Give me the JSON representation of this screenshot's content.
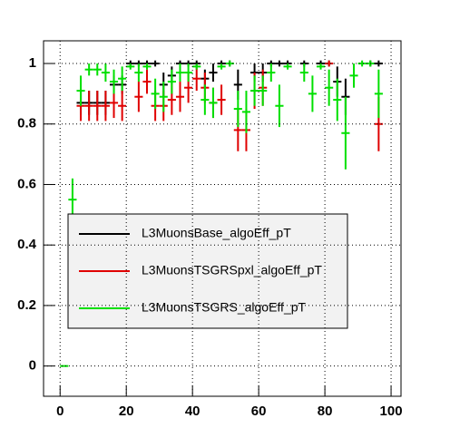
{
  "chart_data": {
    "type": "errorbar",
    "x": [
      1.25,
      3.75,
      6.25,
      8.75,
      11.25,
      13.75,
      16.25,
      18.75,
      21.25,
      23.75,
      26.25,
      28.75,
      31.25,
      33.75,
      36.25,
      38.75,
      41.25,
      43.75,
      46.25,
      48.75,
      51.25,
      53.75,
      56.25,
      58.75,
      61.25,
      63.75,
      66.25,
      68.75,
      71.25,
      73.75,
      76.25,
      78.75,
      81.25,
      83.75,
      86.25,
      88.75,
      91.25,
      93.75,
      96.25,
      98.75
    ],
    "xbinhalf": 1.25,
    "series": [
      {
        "name": "L3MuonsBase_algoEff_pT",
        "color": "#000000",
        "values": [
          null,
          null,
          0.87,
          0.87,
          0.87,
          0.87,
          0.93,
          0.93,
          1.0,
          1.0,
          1.0,
          1.0,
          0.93,
          0.96,
          1.0,
          1.0,
          1.0,
          0.95,
          0.97,
          1.0,
          1.0,
          0.93,
          null,
          0.97,
          0.97,
          1.0,
          1.0,
          1.0,
          null,
          1.0,
          null,
          1.0,
          1.0,
          0.94,
          0.89,
          null,
          null,
          1.0,
          1.0,
          null
        ],
        "errors": [
          null,
          null,
          0.04,
          0.04,
          0.04,
          0.04,
          0.03,
          0.03,
          0.01,
          0.01,
          0.01,
          0.01,
          0.04,
          0.03,
          0.01,
          0.01,
          0.01,
          0.03,
          0.03,
          0.01,
          0.01,
          0.05,
          null,
          0.03,
          0.03,
          0.01,
          0.01,
          0.01,
          null,
          0.01,
          null,
          0.01,
          0.01,
          0.05,
          0.06,
          null,
          null,
          0.01,
          0.01,
          null
        ]
      },
      {
        "name": "L3MuonsTSGRSpxl_algoEff_pT",
        "color": "#e00000",
        "values": [
          null,
          null,
          0.86,
          0.86,
          0.86,
          0.86,
          0.87,
          0.86,
          null,
          0.89,
          0.94,
          0.86,
          0.86,
          0.88,
          0.89,
          0.92,
          0.95,
          0.92,
          0.87,
          0.88,
          null,
          0.78,
          0.78,
          0.91,
          0.92,
          null,
          null,
          null,
          null,
          null,
          null,
          null,
          1.0,
          null,
          null,
          null,
          null,
          null,
          0.8,
          null
        ],
        "errors": [
          null,
          null,
          0.05,
          0.05,
          0.05,
          0.05,
          0.05,
          0.05,
          null,
          0.05,
          0.04,
          0.05,
          0.05,
          0.05,
          0.05,
          0.05,
          0.04,
          0.05,
          0.05,
          0.05,
          null,
          0.07,
          0.07,
          0.06,
          0.06,
          null,
          null,
          null,
          null,
          null,
          null,
          null,
          0.01,
          null,
          null,
          null,
          null,
          null,
          0.09,
          null
        ]
      },
      {
        "name": "L3MuonsTSGRS_algoEff_pT",
        "color": "#00e000",
        "values": [
          0,
          0.55,
          0.91,
          0.98,
          0.98,
          0.97,
          0.94,
          0.95,
          0.99,
          0.97,
          0.99,
          0.9,
          0.89,
          0.94,
          0.97,
          0.97,
          0.99,
          0.88,
          0.87,
          0.99,
          1.0,
          0.85,
          0.84,
          0.91,
          0.91,
          0.97,
          0.86,
          0.99,
          null,
          0.97,
          0.9,
          0.99,
          0.92,
          0.88,
          0.77,
          0.96,
          1.0,
          1.0,
          0.9,
          null
        ],
        "errors": [
          0,
          0.07,
          0.05,
          0.02,
          0.02,
          0.03,
          0.04,
          0.04,
          0.01,
          0.03,
          0.01,
          0.05,
          0.05,
          0.04,
          0.03,
          0.03,
          0.01,
          0.05,
          0.05,
          0.01,
          0.01,
          0.06,
          0.07,
          0.05,
          0.05,
          0.03,
          0.07,
          0.01,
          null,
          0.03,
          0.06,
          0.01,
          0.06,
          0.07,
          0.12,
          0.04,
          0.01,
          0.01,
          0.08,
          null
        ]
      }
    ],
    "xlim": [
      -5,
      103
    ],
    "xticks": [
      0,
      20,
      40,
      60,
      80,
      100
    ],
    "ylim": [
      -0.1,
      1.075
    ],
    "yticks": [
      0,
      0.2,
      0.4,
      0.6,
      0.8,
      1
    ],
    "grid": true
  }
}
